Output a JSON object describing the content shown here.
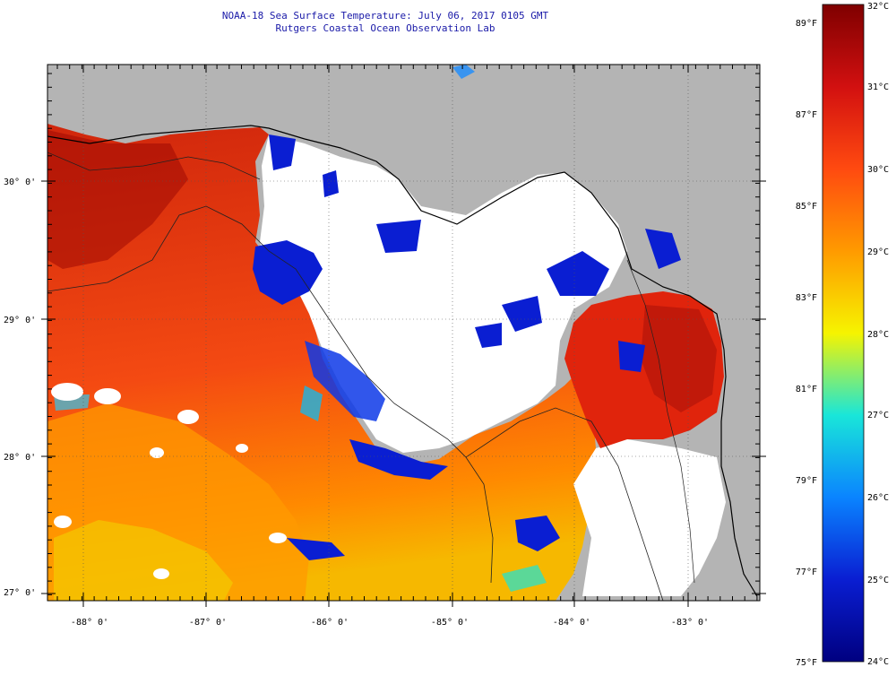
{
  "title": {
    "line1": "NOAA-18 Sea Surface Temperature:  July 06, 2017 0105 GMT",
    "line2": "Rutgers Coastal Ocean Observation Lab"
  },
  "map": {
    "latitude_labels": [
      "30° 0'",
      "29° 0'",
      "28° 0'",
      "27° 0'"
    ],
    "longitude_labels": [
      "-88° 0'",
      "-87° 0'",
      "-86° 0'",
      "-85° 0'",
      "-84° 0'",
      "-83° 0'"
    ],
    "colors": {
      "land": "#b4b4b4",
      "no_data": "#ffffff",
      "title_text": "#1a1aa8"
    }
  },
  "colorbar": {
    "celsius_labels": [
      "32°C",
      "31°C",
      "30°C",
      "29°C",
      "28°C",
      "27°C",
      "26°C",
      "25°C",
      "24°C"
    ],
    "fahrenheit_labels": [
      "89°F",
      "87°F",
      "85°F",
      "83°F",
      "81°F",
      "79°F",
      "77°F",
      "75°F"
    ],
    "stops": [
      "#7f0000",
      "#d21010",
      "#ff4a10",
      "#ff9a00",
      "#f6f400",
      "#19e6d9",
      "#0a84ff",
      "#0a1ed2",
      "#000080"
    ]
  }
}
